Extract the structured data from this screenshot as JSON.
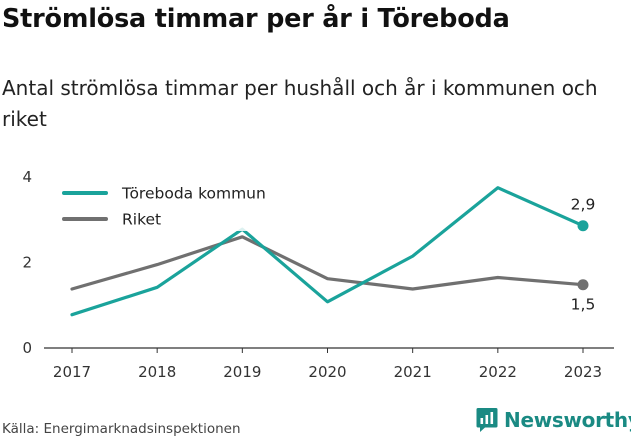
{
  "header": {
    "title": "Strömlösa timmar per år i Töreboda",
    "subtitle": "Antal strömlösa timmar per hushåll och år i kommunen och riket"
  },
  "footer": {
    "source": "Källa: Energimarknadsinspektionen",
    "brand": "Newsworthy",
    "brand_color": "#1a8a83"
  },
  "chart_data": {
    "type": "line",
    "x": [
      "2017",
      "2018",
      "2019",
      "2020",
      "2021",
      "2022",
      "2023"
    ],
    "series": [
      {
        "name": "Töreboda kommun",
        "color": "#1aa39b",
        "values": [
          0.78,
          1.42,
          2.78,
          1.08,
          2.15,
          3.75,
          2.86
        ],
        "end_label": "2,9"
      },
      {
        "name": "Riket",
        "color": "#707070",
        "values": [
          1.38,
          1.95,
          2.6,
          1.62,
          1.38,
          1.65,
          1.48
        ],
        "end_label": "1,5"
      }
    ],
    "yticks": [
      "0",
      "2",
      "4"
    ],
    "ylim": [
      0,
      4
    ],
    "xlabel": "",
    "ylabel": "",
    "legend": "top-left",
    "grid": false
  }
}
